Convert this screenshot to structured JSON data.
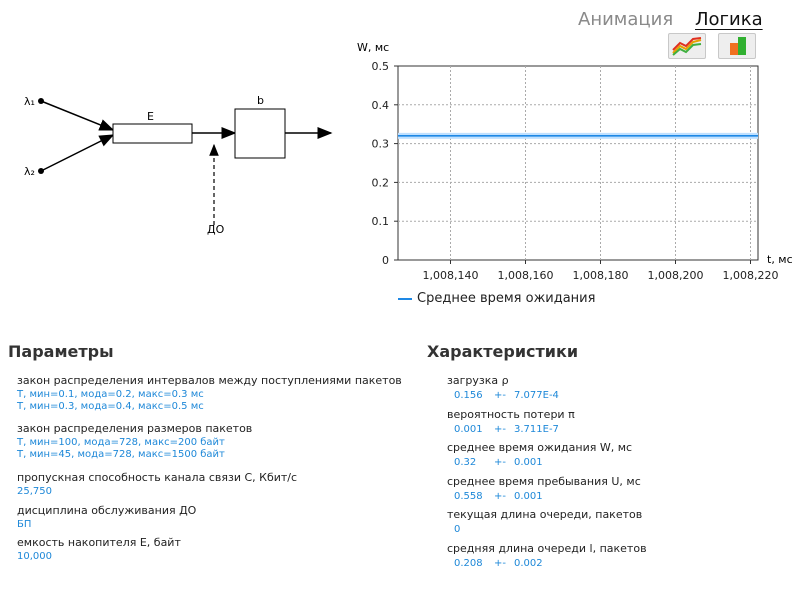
{
  "tabs": [
    {
      "label": "Анимация",
      "active": false
    },
    {
      "label": "Логика",
      "active": true
    }
  ],
  "toolbar": {
    "chart_icon": "line-chart-icon",
    "bar_icon": "bar-chart-icon"
  },
  "diagram": {
    "lambda1": "λ₁",
    "lambda2": "λ₂",
    "buffer_label": "E",
    "server_label": "b",
    "control_label": "ДО"
  },
  "chart_data": {
    "type": "line",
    "ylabel": "W, мс",
    "xlabel": "t, мс",
    "ylim": [
      0,
      0.5
    ],
    "xlim": [
      1008.126,
      1008.222
    ],
    "y_ticks": [
      {
        "value": 0,
        "label": "0"
      },
      {
        "value": 0.1,
        "label": "0.1"
      },
      {
        "value": 0.2,
        "label": "0.2"
      },
      {
        "value": 0.3,
        "label": "0.3"
      },
      {
        "value": 0.4,
        "label": "0.4"
      },
      {
        "value": 0.5,
        "label": "0.5"
      }
    ],
    "x_ticks": [
      {
        "value": 1008.14,
        "label": "1,008,140"
      },
      {
        "value": 1008.16,
        "label": "1,008,160"
      },
      {
        "value": 1008.18,
        "label": "1,008,180"
      },
      {
        "value": 1008.2,
        "label": "1,008,200"
      },
      {
        "value": 1008.22,
        "label": "1,008,220"
      }
    ],
    "series": [
      {
        "name": "Среднее время ожидания",
        "color": "#1e88e5",
        "x": [
          1008.126,
          1008.222
        ],
        "values": [
          0.32,
          0.32
        ]
      }
    ],
    "legend_position": "bottom"
  },
  "params": {
    "title": "Параметры",
    "items": [
      {
        "label": "закон распределения интервалов между поступлениями пакетов",
        "values": [
          "Т, мин=0.1, мода=0.2, макс=0.3 мс",
          "Т, мин=0.3, мода=0.4, макс=0.5 мс"
        ]
      },
      {
        "label": "закон распределения размеров пакетов",
        "values": [
          "Т, мин=100, мода=728, макс=200 байт",
          "Т, мин=45, мода=728, макс=1500 байт"
        ]
      },
      {
        "label": "пропускная способность канала связи С, Кбит/с",
        "values": [
          "25,750"
        ]
      },
      {
        "label": "дисциплина обслуживания ДО",
        "values": [
          "БП"
        ]
      },
      {
        "label": "емкость накопителя Е, байт",
        "values": [
          "10,000"
        ]
      }
    ]
  },
  "characteristics": {
    "title": "Характеристики",
    "items": [
      {
        "label": "загрузка ρ",
        "value": "0.156",
        "pm": "+-",
        "err": "7.077E-4"
      },
      {
        "label": "вероятность потери π",
        "value": "0.001",
        "pm": "+-",
        "err": "3.711E-7"
      },
      {
        "label": "среднее время ожидания W, мс",
        "value": "0.32",
        "pm": "+-",
        "err": "0.001"
      },
      {
        "label": "среднее время пребывания U, мс",
        "value": "0.558",
        "pm": "+-",
        "err": "0.001"
      },
      {
        "label": "текущая длина очереди, пакетов",
        "value": "0",
        "pm": "",
        "err": ""
      },
      {
        "label": "средняя длина очереди l, пакетов",
        "value": "0.208",
        "pm": "+-",
        "err": "0.002"
      }
    ]
  }
}
